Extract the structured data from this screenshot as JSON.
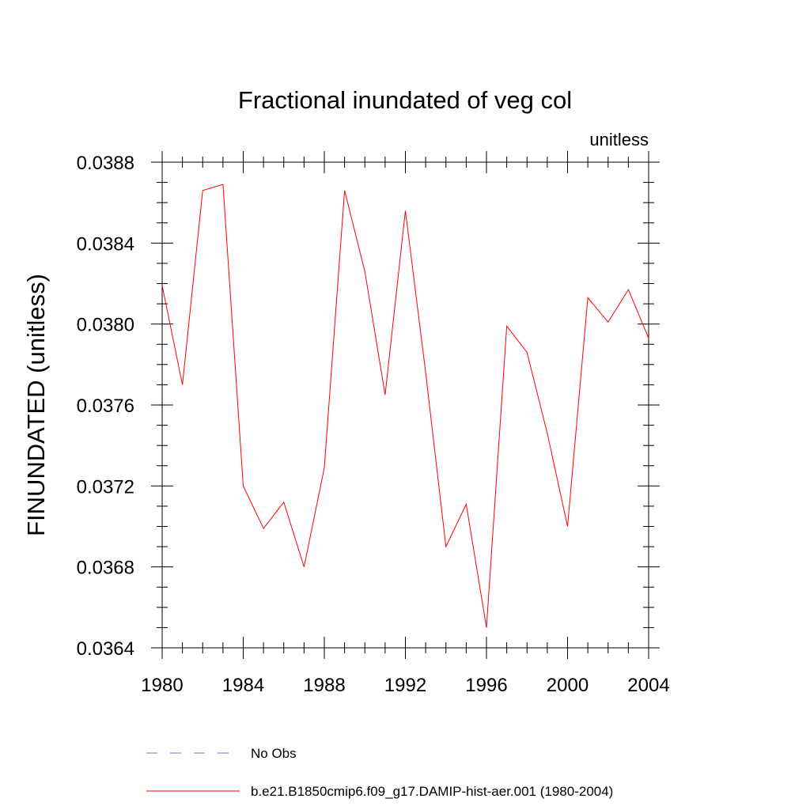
{
  "chart_data": {
    "type": "line",
    "title": "Fractional inundated of veg col",
    "units_label": "unitless",
    "xlabel": "",
    "ylabel": "FINUNDATED  (unitless)",
    "xlim": [
      1980,
      2004
    ],
    "ylim": [
      0.0364,
      0.0388
    ],
    "x_ticks": [
      1980,
      1984,
      1988,
      1992,
      1996,
      2000,
      2004
    ],
    "x_tick_labels": [
      "1980",
      "1984",
      "1988",
      "1992",
      "1996",
      "2000",
      "2004"
    ],
    "y_ticks": [
      0.0364,
      0.0368,
      0.0372,
      0.0376,
      0.038,
      0.0384,
      0.0388
    ],
    "y_tick_labels": [
      "0.0364",
      "0.0368",
      "0.0372",
      "0.0376",
      "0.0380",
      "0.0384",
      "0.0388"
    ],
    "grid": false,
    "legend_position": "bottom",
    "series": [
      {
        "name": "No Obs",
        "color": "#7777cc",
        "line_style": "dashed",
        "x": [],
        "values": []
      },
      {
        "name": "b.e21.B1850cmip6.f09_g17.DAMIP-hist-aer.001 (1980-2004)",
        "color": "#ff0000",
        "line_style": "solid",
        "x": [
          1980,
          1981,
          1982,
          1983,
          1984,
          1985,
          1986,
          1987,
          1988,
          1989,
          1990,
          1991,
          1992,
          1993,
          1994,
          1995,
          1996,
          1997,
          1998,
          1999,
          2000,
          2001,
          2002,
          2003,
          2004
        ],
        "values": [
          0.03819,
          0.0377,
          0.03866,
          0.03869,
          0.0372,
          0.03699,
          0.03712,
          0.0368,
          0.03729,
          0.03866,
          0.03826,
          0.03765,
          0.03856,
          0.03776,
          0.0369,
          0.03711,
          0.0365,
          0.03799,
          0.03786,
          0.03746,
          0.037,
          0.03813,
          0.03801,
          0.03817,
          0.03793
        ]
      }
    ]
  }
}
